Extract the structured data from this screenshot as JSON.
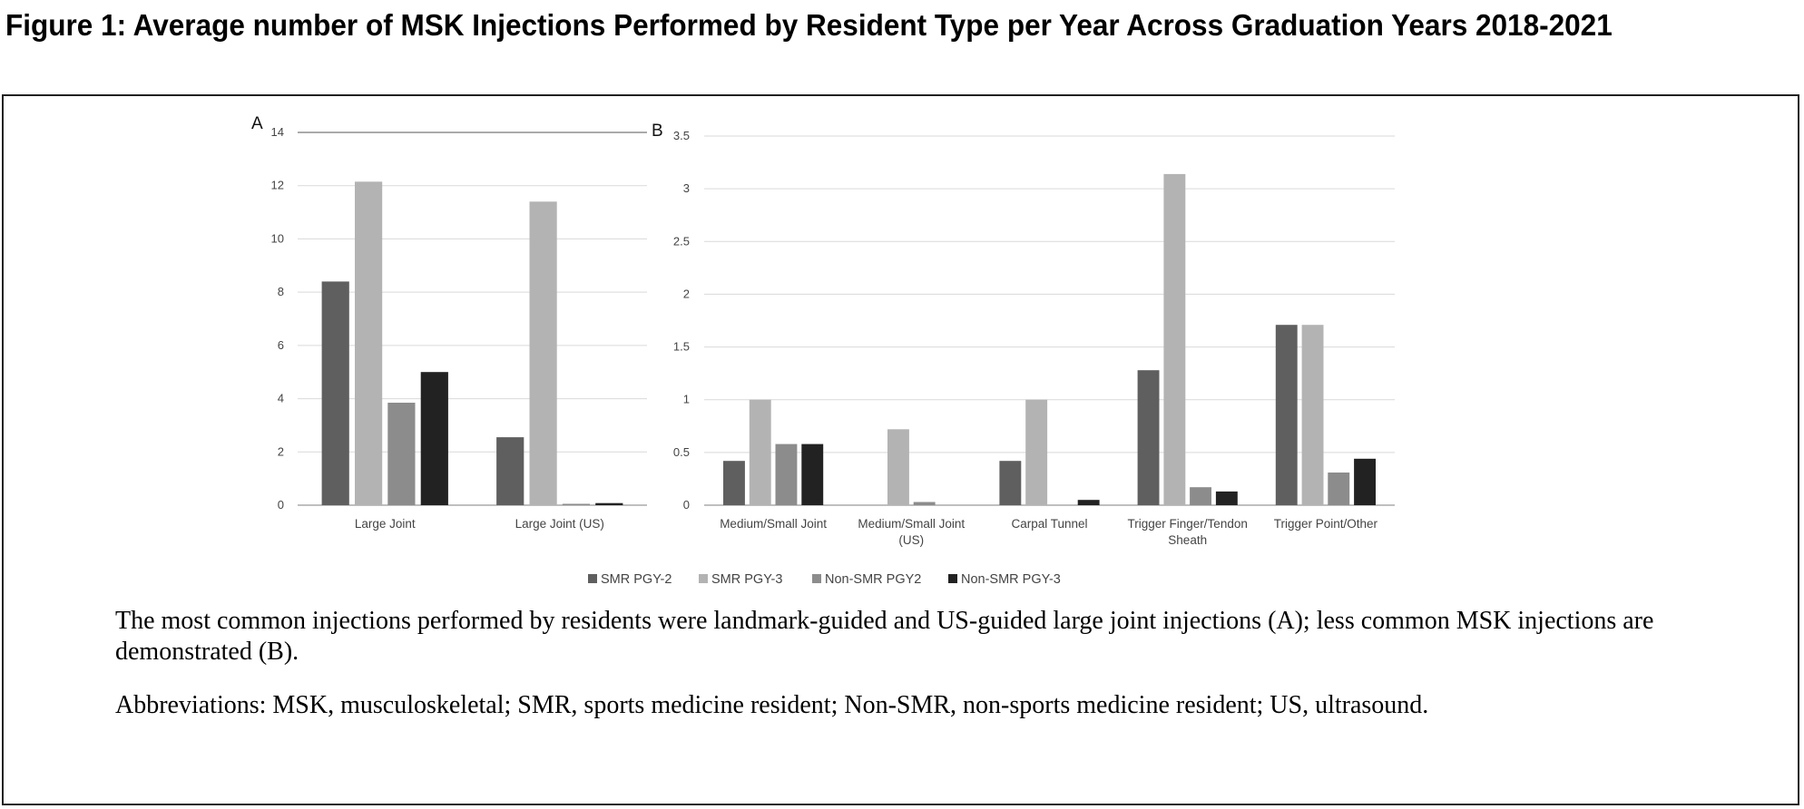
{
  "title": "Figure 1: Average number of MSK Injections Performed by Resident Type per Year Across Graduation Years 2018-2021",
  "caption": "The most common injections performed by residents were landmark-guided and US-guided large joint injections (A); less common MSK injections are demonstrated (B).",
  "abbreviations": "Abbreviations: MSK, musculoskeletal; SMR, sports medicine resident; Non-SMR, non-sports medicine resident; US, ultrasound.",
  "colors": {
    "SMR PGY-2": "#5f5f5f",
    "SMR PGY-3": "#b3b3b3",
    "Non-SMR PGY2": "#8c8c8c",
    "Non-SMR PGY-3": "#222222"
  },
  "chart_data": [
    {
      "type": "bar",
      "panel_label": "A",
      "categories": [
        [
          "Large Joint"
        ],
        [
          "Large Joint (US)"
        ]
      ],
      "ylim": [
        0,
        14
      ],
      "yticks": [
        0,
        2,
        4,
        6,
        8,
        10,
        12,
        14
      ],
      "grid": true,
      "series": [
        {
          "name": "SMR PGY-2",
          "values": [
            8.4,
            2.55
          ]
        },
        {
          "name": "SMR PGY-3",
          "values": [
            12.15,
            11.4
          ]
        },
        {
          "name": "Non-SMR PGY2",
          "values": [
            3.85,
            0.05
          ]
        },
        {
          "name": "Non-SMR PGY-3",
          "values": [
            5.0,
            0.08
          ]
        }
      ]
    },
    {
      "type": "bar",
      "panel_label": "B",
      "categories": [
        [
          "Medium/Small Joint"
        ],
        [
          "Medium/Small Joint",
          "(US)"
        ],
        [
          "Carpal Tunnel"
        ],
        [
          "Trigger Finger/Tendon",
          "Sheath"
        ],
        [
          "Trigger Point/Other"
        ]
      ],
      "ylim": [
        0,
        3.5
      ],
      "yticks": [
        0,
        0.5,
        1,
        1.5,
        2,
        2.5,
        3,
        3.5
      ],
      "grid": true,
      "series": [
        {
          "name": "SMR PGY-2",
          "values": [
            0.42,
            0,
            0.42,
            1.28,
            1.71
          ]
        },
        {
          "name": "SMR PGY-3",
          "values": [
            1.0,
            0.72,
            1.0,
            3.14,
            1.71
          ]
        },
        {
          "name": "Non-SMR PGY2",
          "values": [
            0.58,
            0.03,
            0,
            0.17,
            0.31
          ]
        },
        {
          "name": "Non-SMR PGY-3",
          "values": [
            0.58,
            0,
            0.05,
            0.13,
            0.44
          ]
        }
      ]
    }
  ],
  "legend": {
    "position": "bottom",
    "items": [
      "SMR PGY-2",
      "SMR PGY-3",
      "Non-SMR PGY2",
      "Non-SMR PGY-3"
    ]
  }
}
